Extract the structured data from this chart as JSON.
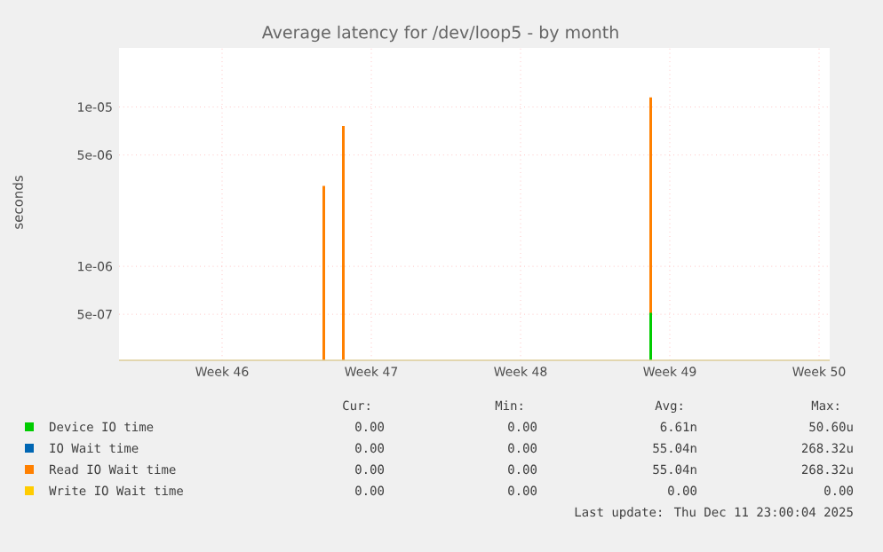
{
  "chart_data": {
    "type": "bar",
    "title": "Average latency for /dev/loop5 - by month",
    "ylabel": "seconds",
    "x": [
      "2025-11-18T06:30",
      "2025-11-19T04:30",
      "2025-12-03T14:30"
    ],
    "series": [
      {
        "name": "Device IO time",
        "color": "#00cc00",
        "values": [
          null,
          null,
          5.1e-07
        ]
      },
      {
        "name": "IO Wait time",
        "color": "#0066b3",
        "values": [
          null,
          null,
          null
        ]
      },
      {
        "name": "Read IO Wait time",
        "color": "#ff8000",
        "values": [
          3.2e-06,
          7.6e-06,
          1.15e-05
        ]
      },
      {
        "name": "Write IO Wait time",
        "color": "#ffcc00",
        "values": [
          null,
          null,
          null
        ]
      }
    ],
    "log": "y",
    "grid": true,
    "legend": "bottom",
    "xlim": [
      "2025-11-08T16:00",
      "2025-12-12T00:00"
    ],
    "xticks": [
      {
        "value": "2025-11-13T12:00",
        "label": "Week 46"
      },
      {
        "value": "2025-11-20T12:00",
        "label": "Week 47"
      },
      {
        "value": "2025-11-27T12:00",
        "label": "Week 48"
      },
      {
        "value": "2025-12-04T12:00",
        "label": "Week 49"
      },
      {
        "value": "2025-12-11T12:00",
        "label": "Week 50"
      }
    ],
    "ylim": [
      2.57e-07,
      2.35e-05
    ],
    "yticks": [
      {
        "value": 5e-07,
        "label": "5e-07"
      },
      {
        "value": 1e-06,
        "label": "1e-06"
      },
      {
        "value": 5e-06,
        "label": "5e-06"
      },
      {
        "value": 1e-05,
        "label": "1e-05"
      }
    ],
    "annotations": [
      "Cur:",
      "Min:",
      "Avg:",
      "Max:",
      "0.00",
      "0.00",
      "6.61n",
      "50.60u",
      "0.00",
      "0.00",
      "55.04n",
      "268.32u",
      "0.00",
      "0.00",
      "55.04n",
      "268.32u",
      "0.00",
      "0.00",
      "0.00",
      "0.00",
      "Last update: Thu Dec 11 23:00:04 2025"
    ]
  }
}
